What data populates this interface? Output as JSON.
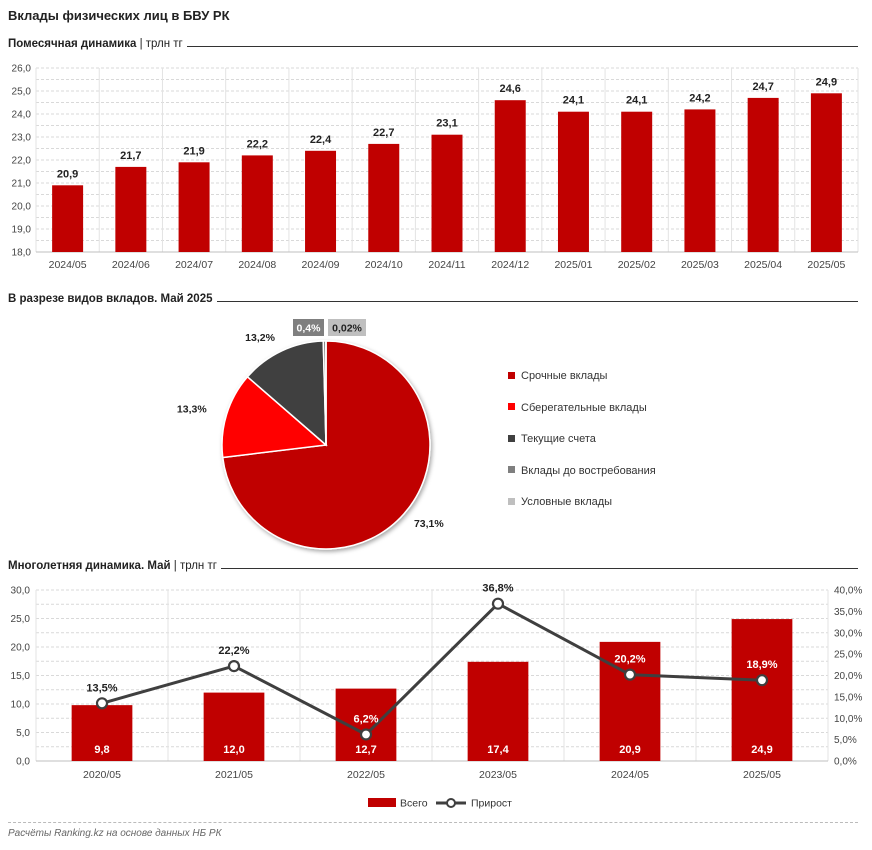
{
  "title": "Вклады физических лиц в БВУ РК",
  "footnote": "Расчёты Ranking.kz на основе данных НБ РК",
  "sections": {
    "monthly": {
      "title": "Помесячная динамика",
      "sep": "|",
      "unit": "трлн тг"
    },
    "pie": {
      "title": "В разрезе видов вкладов. Май 2025"
    },
    "yearly": {
      "title": "Многолетняя динамика. Май",
      "sep": "|",
      "unit": "трлн тг"
    }
  },
  "colors": {
    "bar": "#c00000",
    "line": "#3f3f3f",
    "grid": "#d9d9d9"
  },
  "chart_data": [
    {
      "type": "bar",
      "categories": [
        "2024/05",
        "2024/06",
        "2024/07",
        "2024/08",
        "2024/09",
        "2024/10",
        "2024/11",
        "2024/12",
        "2025/01",
        "2025/02",
        "2025/03",
        "2025/04",
        "2025/05"
      ],
      "values": [
        20.9,
        21.7,
        21.9,
        22.2,
        22.4,
        22.7,
        23.1,
        24.6,
        24.1,
        24.1,
        24.2,
        24.7,
        24.9
      ],
      "labels": [
        "20,9",
        "21,7",
        "21,9",
        "22,2",
        "22,4",
        "22,7",
        "23,1",
        "24,6",
        "24,1",
        "24,1",
        "24,2",
        "24,7",
        "24,9"
      ],
      "ylim": [
        18.0,
        26.0
      ],
      "yticks": [
        "18,0",
        "19,0",
        "20,0",
        "21,0",
        "22,0",
        "23,0",
        "24,0",
        "25,0",
        "26,0"
      ],
      "grid": true
    },
    {
      "type": "pie",
      "slices": [
        {
          "name": "Срочные вклады",
          "value": 73.1,
          "label": "73,1%",
          "color": "#c00000"
        },
        {
          "name": "Сберегательные вклады",
          "value": 13.3,
          "label": "13,3%",
          "color": "#ff0000"
        },
        {
          "name": "Текущие счета",
          "value": 13.2,
          "label": "13,2%",
          "color": "#404040"
        },
        {
          "name": "Вклады до востребования",
          "value": 0.4,
          "label": "0,4%",
          "color": "#7f7f7f"
        },
        {
          "name": "Условные вклады",
          "value": 0.02,
          "label": "0,02%",
          "color": "#bfbfbf"
        }
      ],
      "legend": "right"
    },
    {
      "type": "bar+line",
      "categories": [
        "2020/05",
        "2021/05",
        "2022/05",
        "2023/05",
        "2024/05",
        "2025/05"
      ],
      "series": [
        {
          "name": "Всего",
          "type": "bar",
          "values": [
            9.8,
            12.0,
            12.7,
            17.4,
            20.9,
            24.9
          ],
          "labels": [
            "9,8",
            "12,0",
            "12,7",
            "17,4",
            "20,9",
            "24,9"
          ]
        },
        {
          "name": "Прирост",
          "type": "line",
          "axis": "right",
          "values": [
            13.5,
            22.2,
            6.2,
            36.8,
            20.2,
            18.9
          ],
          "labels": [
            "13,5%",
            "22,2%",
            "6,2%",
            "36,8%",
            "20,2%",
            "18,9%"
          ]
        }
      ],
      "ylim": [
        0,
        30
      ],
      "yticks": [
        "0,0",
        "5,0",
        "10,0",
        "15,0",
        "20,0",
        "25,0",
        "30,0"
      ],
      "y2lim": [
        0,
        40
      ],
      "y2ticks": [
        "0,0%",
        "5,0%",
        "10,0%",
        "15,0%",
        "20,0%",
        "25,0%",
        "30,0%",
        "35,0%",
        "40,0%"
      ],
      "legend": "bottom",
      "grid": true
    }
  ]
}
